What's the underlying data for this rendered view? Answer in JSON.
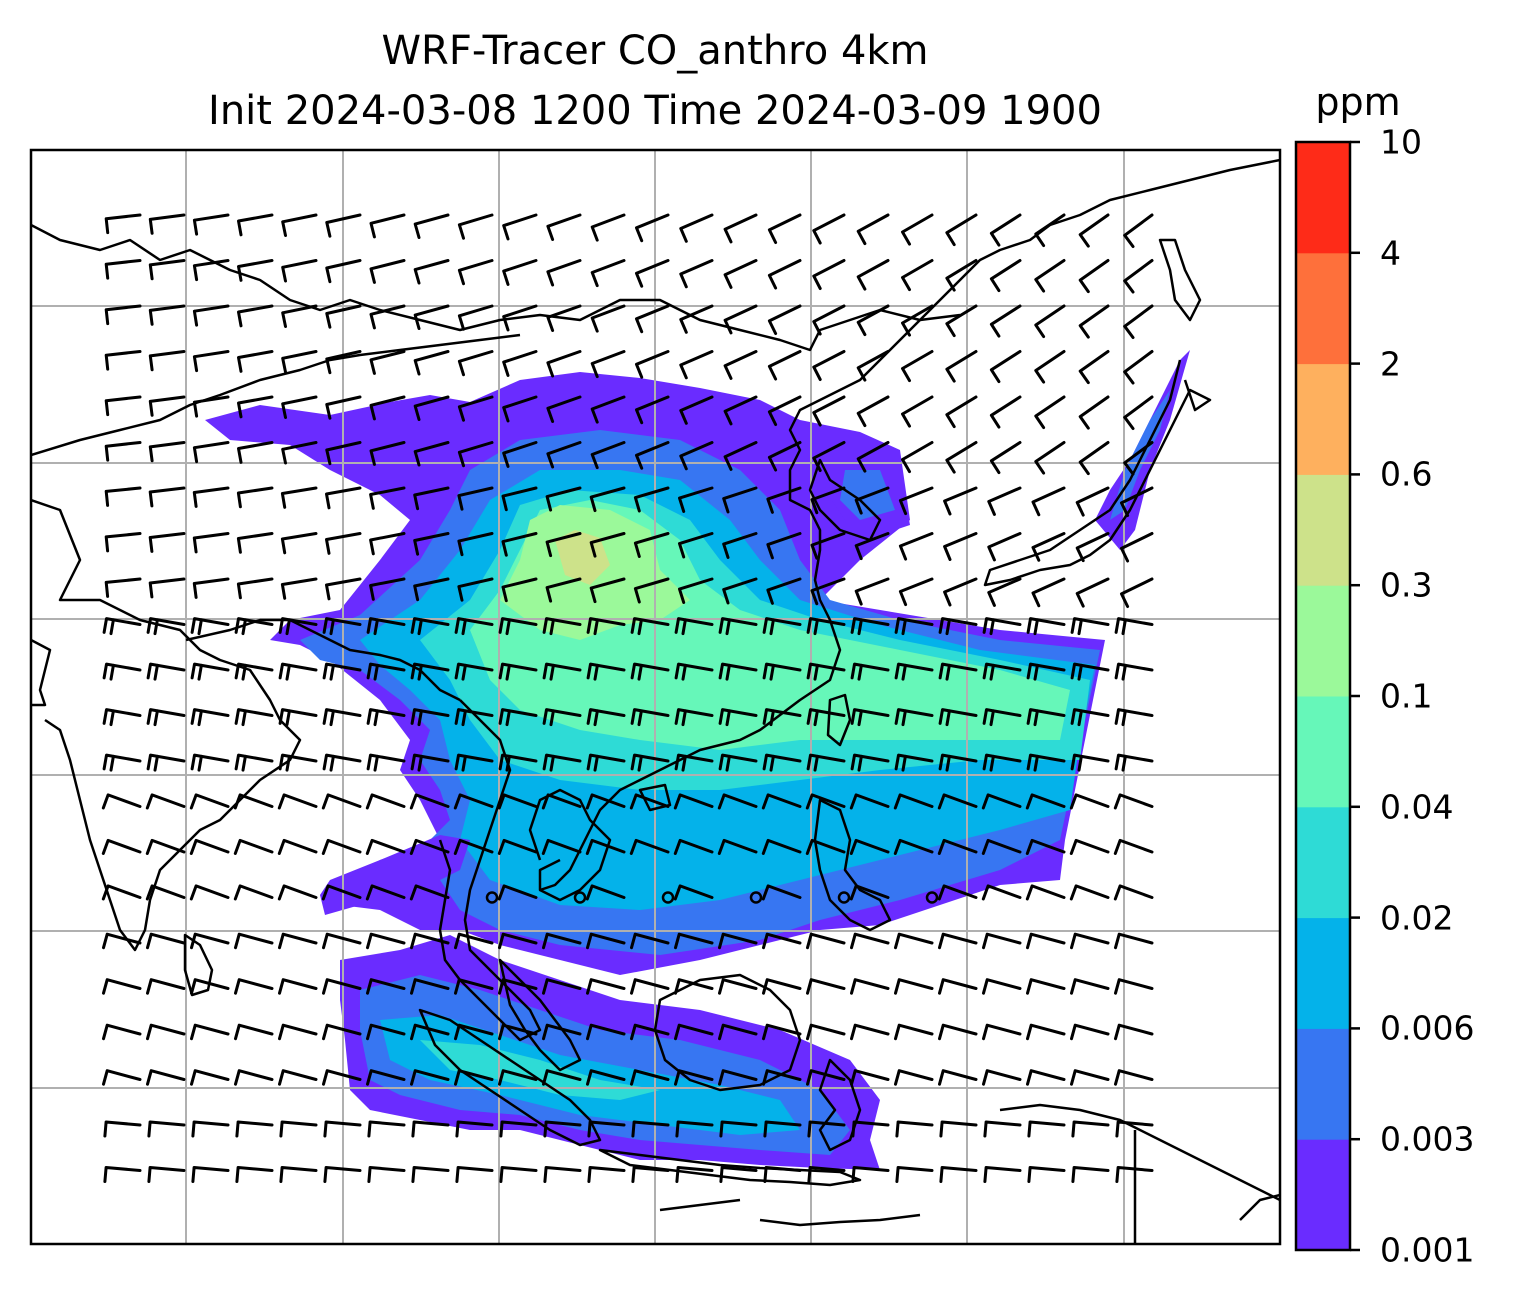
{
  "title": {
    "line1": "WRF-Tracer CO_anthro 4km",
    "line2": "Init 2024-03-08 1200 Time 2024-03-09 1900"
  },
  "colorbar": {
    "unit": "ppm",
    "tick_labels": [
      "0.001",
      "0.003",
      "0.006",
      "0.02",
      "0.04",
      "0.1",
      "0.3",
      "0.6",
      "2",
      "4",
      "10"
    ],
    "colors": [
      "#6a2cff",
      "#3776f2",
      "#04b2ea",
      "#2edbd6",
      "#66f7b9",
      "#9bf99a",
      "#cde28a",
      "#feb05e",
      "#fe703b",
      "#fe2b18"
    ]
  },
  "map": {
    "field": "CO_anthro",
    "units": "ppm",
    "overlays": [
      "coastlines",
      "country-borders",
      "gridlines",
      "wind-barbs"
    ],
    "gridlines": true
  }
}
